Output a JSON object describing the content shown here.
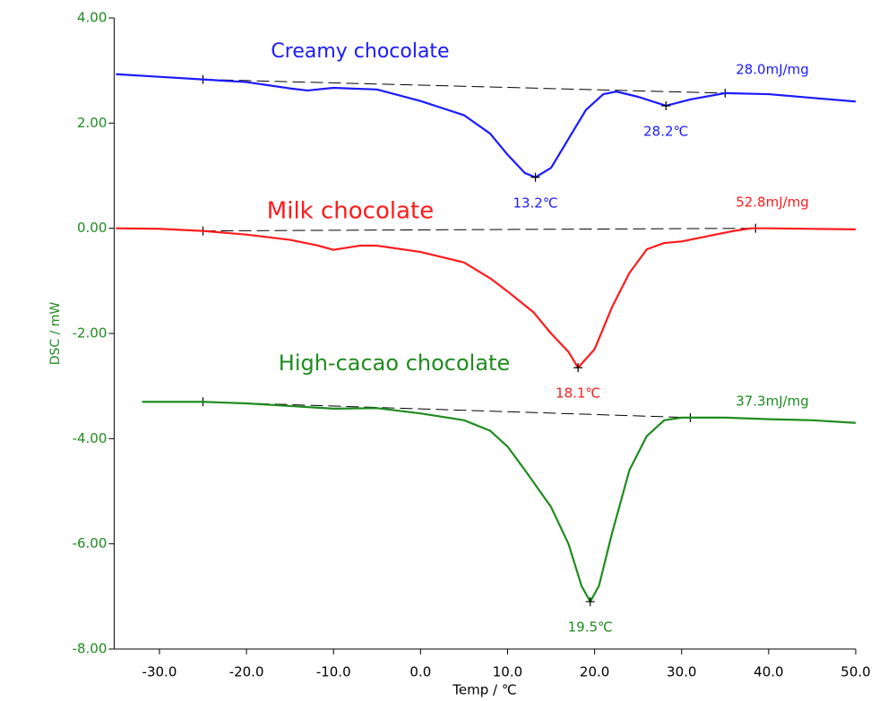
{
  "chart_data": {
    "type": "line",
    "x_label": "Temp / ℃",
    "y_label": "DSC / mW",
    "xlim": [
      -35,
      50
    ],
    "ylim": [
      -8,
      4
    ],
    "grid": false,
    "xticks": [
      {
        "value": -30,
        "label": "-30.0"
      },
      {
        "value": -20,
        "label": "-20.0"
      },
      {
        "value": -10,
        "label": "-10.0"
      },
      {
        "value": 0,
        "label": "0.0"
      },
      {
        "value": 10,
        "label": "10.0"
      },
      {
        "value": 20,
        "label": "20.0"
      },
      {
        "value": 30,
        "label": "30.0"
      },
      {
        "value": 40,
        "label": "40.0"
      },
      {
        "value": 50,
        "label": "50.0"
      }
    ],
    "yticks": [
      {
        "value": 4,
        "label": "4.00"
      },
      {
        "value": 2,
        "label": "2.00"
      },
      {
        "value": 0,
        "label": "0.00"
      },
      {
        "value": -2,
        "label": "-2.00"
      },
      {
        "value": -4,
        "label": "-4.00"
      },
      {
        "value": -6,
        "label": "-6.00"
      },
      {
        "value": -8,
        "label": "-8.00"
      }
    ],
    "series": [
      {
        "name": "Creamy chocolate",
        "color": "#1a1aff",
        "x": [
          -35,
          -30,
          -25,
          -20,
          -15,
          -13,
          -10,
          -5,
          0,
          5,
          8,
          10,
          12,
          13.2,
          15,
          17,
          19,
          21,
          22.5,
          25,
          28.2,
          31,
          35,
          40,
          45,
          50
        ],
        "values": [
          2.93,
          2.88,
          2.83,
          2.78,
          2.66,
          2.62,
          2.67,
          2.64,
          2.42,
          2.15,
          1.8,
          1.4,
          1.05,
          0.97,
          1.15,
          1.7,
          2.25,
          2.55,
          2.6,
          2.5,
          2.33,
          2.45,
          2.57,
          2.55,
          2.48,
          2.41
        ],
        "baseline": {
          "x": [
            -25,
            35
          ],
          "values": [
            2.83,
            2.57
          ]
        },
        "peaks": [
          {
            "x": 13.2,
            "y": 0.97,
            "label": "13.2℃"
          },
          {
            "x": 28.2,
            "y": 2.33,
            "label": "28.2℃"
          }
        ],
        "enthalpy": "28.0mJ/mg"
      },
      {
        "name": "Milk chocolate",
        "color": "#ff1a1a",
        "x": [
          -35,
          -30,
          -25,
          -20,
          -15,
          -12,
          -10,
          -7,
          -5,
          0,
          5,
          8,
          10,
          13,
          15,
          17,
          18.1,
          20,
          22,
          24,
          26,
          28,
          30,
          33,
          36,
          38,
          40,
          50
        ],
        "values": [
          0,
          -0.01,
          -0.05,
          -0.12,
          -0.22,
          -0.32,
          -0.41,
          -0.33,
          -0.33,
          -0.45,
          -0.65,
          -0.95,
          -1.2,
          -1.6,
          -2.0,
          -2.35,
          -2.65,
          -2.3,
          -1.5,
          -0.85,
          -0.4,
          -0.28,
          -0.25,
          -0.15,
          -0.05,
          0,
          0,
          -0.02
        ],
        "baseline": {
          "x": [
            -25,
            38.5
          ],
          "values": [
            -0.05,
            0
          ]
        },
        "peaks": [
          {
            "x": 18.1,
            "y": -2.65,
            "label": "18.1℃"
          }
        ],
        "enthalpy": "52.8mJ/mg"
      },
      {
        "name": "High-cacao chocolate",
        "color": "#1e8c1e",
        "x": [
          -32,
          -25,
          -20,
          -15,
          -10,
          -5,
          0,
          5,
          8,
          10,
          12,
          15,
          17,
          18.5,
          19.5,
          20.5,
          22,
          24,
          26,
          28,
          30,
          35,
          40,
          45,
          50
        ],
        "values": [
          -3.3,
          -3.3,
          -3.33,
          -3.38,
          -3.43,
          -3.42,
          -3.52,
          -3.65,
          -3.85,
          -4.15,
          -4.6,
          -5.3,
          -6.0,
          -6.8,
          -7.1,
          -6.8,
          -5.8,
          -4.6,
          -3.95,
          -3.65,
          -3.6,
          -3.6,
          -3.63,
          -3.65,
          -3.7
        ],
        "baseline": {
          "x": [
            -25,
            31
          ],
          "values": [
            -3.3,
            -3.6
          ]
        },
        "peaks": [
          {
            "x": 19.5,
            "y": -7.1,
            "label": "19.5℃"
          }
        ],
        "enthalpy": "37.3mJ/mg"
      }
    ]
  }
}
